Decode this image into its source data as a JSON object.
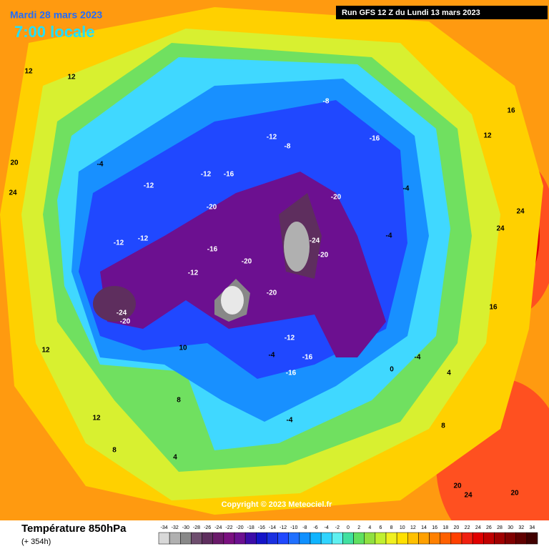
{
  "header": {
    "date": "Mardi 28 mars 2023",
    "time": "7:00 locale",
    "run": "Run GFS 12 Z du Lundi 13 mars 2023"
  },
  "copyright": "Copyright © 2023 Meteociel.fr",
  "footer": {
    "title": "Température 850hPa",
    "lead": "(+ 354h)"
  },
  "scale": {
    "values": [
      -34,
      -32,
      -30,
      -28,
      -26,
      -24,
      -22,
      -20,
      -18,
      -16,
      -14,
      -12,
      -10,
      -8,
      -6,
      -4,
      -2,
      0,
      2,
      4,
      6,
      8,
      10,
      12,
      14,
      16,
      18,
      20,
      22,
      24,
      26,
      28,
      30,
      32,
      34
    ],
    "colors": [
      "#d8d8d8",
      "#b0b0b0",
      "#888888",
      "#6e4e6e",
      "#5e2e5e",
      "#6a1a6a",
      "#7a1080",
      "#6c1090",
      "#3c0ca8",
      "#1414c8",
      "#1a30e0",
      "#2048ff",
      "#2070ff",
      "#1090ff",
      "#10b4ff",
      "#30d4ff",
      "#60f0f0",
      "#40e0a0",
      "#60e060",
      "#90e040",
      "#c0f030",
      "#f0f020",
      "#ffe000",
      "#ffc000",
      "#ffa000",
      "#ff8000",
      "#ff6000",
      "#ff4000",
      "#f02010",
      "#e00000",
      "#c00000",
      "#a00000",
      "#800000",
      "#600000",
      "#400000"
    ]
  },
  "map_labels": [
    -20,
    -20,
    -24,
    -12,
    -12,
    -24,
    -20,
    -16,
    -12,
    -20,
    -20,
    -20,
    -12,
    -16,
    -16,
    -4,
    -16,
    -12,
    -12,
    -8,
    -8,
    -16,
    -4,
    -4,
    -4,
    0,
    4,
    8,
    20,
    20,
    12,
    16,
    16,
    12,
    12,
    8,
    4,
    -4,
    10,
    20,
    24,
    24,
    24,
    24,
    12,
    12,
    -12,
    -4,
    8
  ]
}
